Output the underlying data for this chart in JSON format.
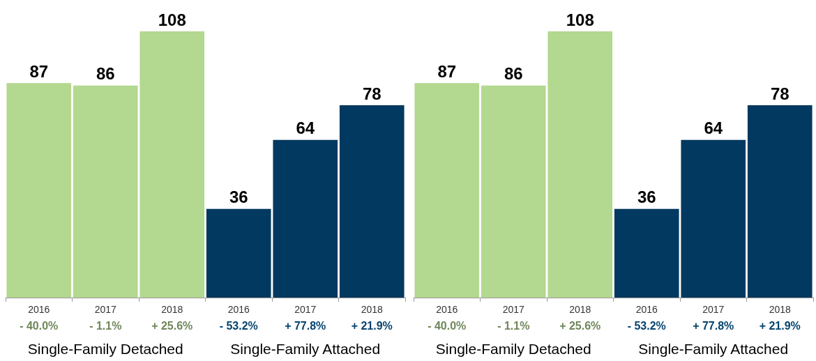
{
  "chart_data": [
    {
      "type": "bar",
      "stacked": true,
      "data_labels": true,
      "categories": [
        "2016",
        "2017",
        "2018",
        "2016",
        "2017",
        "2018"
      ],
      "series": [
        {
          "name": "Single-Family Detached",
          "color": "#b3d88f",
          "values": [
            87,
            86,
            108,
            null,
            null,
            null
          ]
        },
        {
          "name": "Single-Family Attached",
          "color": "#023960",
          "values": [
            null,
            null,
            null,
            36,
            64,
            78
          ]
        }
      ],
      "annotations": [
        "- 40.0%",
        "- 1.1%",
        "+ 25.6%",
        "- 53.2%",
        "+ 77.8%",
        "+ 21.9%"
      ]
    },
    {
      "type": "bar",
      "stacked": true,
      "data_labels": true,
      "categories": [
        "2016",
        "2017",
        "2018",
        "2016",
        "2017",
        "2018"
      ],
      "series": [
        {
          "name": "Single-Family Detached",
          "color": "#b3d88f",
          "values": [
            87,
            86,
            108,
            null,
            null,
            null
          ]
        },
        {
          "name": "Single-Family Attached",
          "color": "#023960",
          "values": [
            null,
            null,
            null,
            36,
            64,
            78
          ]
        }
      ],
      "annotations": [
        "- 40.0%",
        "- 1.1%",
        "+ 25.6%",
        "- 53.2%",
        "+ 77.8%",
        "+ 21.9%"
      ]
    }
  ]
}
